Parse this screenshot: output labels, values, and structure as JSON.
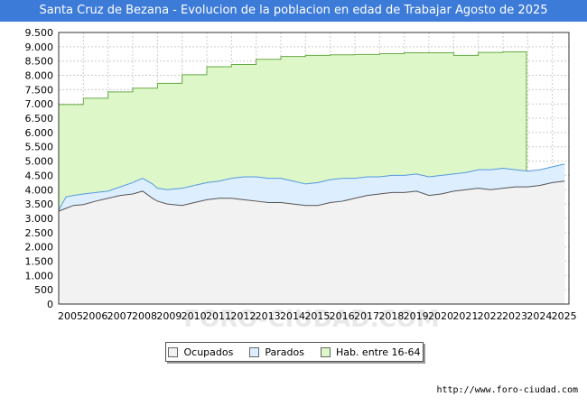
{
  "header": {
    "title": "Santa Cruz de Bezana - Evolucion de la poblacion en edad de Trabajar Agosto de 2025"
  },
  "footer": {
    "source": "http://www.foro-ciudad.com"
  },
  "watermark": "FORO-CIUDAD.COM",
  "colors": {
    "ocupados_fill": "#f2f2f2",
    "ocupados_line": "#555555",
    "parados_fill": "#ddeeff",
    "parados_line": "#5599dd",
    "hab_fill": "#ddf7c8",
    "hab_line": "#66aa44",
    "grid": "#cccccc",
    "title_bg": "#3d7bd9"
  },
  "legend": [
    {
      "key": "ocupados",
      "label": "Ocupados",
      "color": "#f2f2f2"
    },
    {
      "key": "parados",
      "label": "Parados",
      "color": "#ddeeff"
    },
    {
      "key": "hab",
      "label": "Hab. entre 16-64",
      "color": "#ddf7c8"
    }
  ],
  "chart_data": {
    "type": "area",
    "title": "Santa Cruz de Bezana - Evolucion de la poblacion en edad de Trabajar Agosto de 2025",
    "xlabel": "",
    "ylabel": "",
    "xlim": [
      2005,
      2025.67
    ],
    "ylim": [
      0,
      9500
    ],
    "y_ticks": [
      0,
      500,
      1000,
      1500,
      2000,
      2500,
      3000,
      3500,
      4000,
      4500,
      5000,
      5500,
      6000,
      6500,
      7000,
      7500,
      8000,
      8500,
      9000,
      9500
    ],
    "y_tick_labels": [
      "0",
      "500",
      "1.000",
      "1.500",
      "2.000",
      "2.500",
      "3.000",
      "3.500",
      "4.000",
      "4.500",
      "5.000",
      "5.500",
      "6.000",
      "6.500",
      "7.000",
      "7.500",
      "8.000",
      "8.500",
      "9.000",
      "9.500"
    ],
    "x_ticks": [
      "2005",
      "2006",
      "2007",
      "2008",
      "2009",
      "2010",
      "2011",
      "2012",
      "2013",
      "2014",
      "2015",
      "2016",
      "2017",
      "2018",
      "2019",
      "2020",
      "2021",
      "2022",
      "2023",
      "2024",
      "2025"
    ],
    "grid": true,
    "legend_position": "bottom-center",
    "series": [
      {
        "name": "Hab. entre 16-64",
        "type": "step",
        "x": [
          2005.0,
          2006.0,
          2007.0,
          2008.0,
          2009.0,
          2010.0,
          2011.0,
          2012.0,
          2013.0,
          2014.0,
          2015.0,
          2016.0,
          2017.0,
          2018.0,
          2019.0,
          2020.0,
          2021.0,
          2022.0,
          2023.0,
          2023.95
        ],
        "values": [
          6980,
          7200,
          7420,
          7550,
          7720,
          8020,
          8300,
          8380,
          8560,
          8660,
          8700,
          8720,
          8730,
          8760,
          8790,
          8790,
          8700,
          8800,
          8820,
          8820
        ]
      },
      {
        "name": "Parados",
        "x": [
          2005.0,
          2005.3,
          2005.6,
          2006.0,
          2006.5,
          2007.0,
          2007.5,
          2008.0,
          2008.4,
          2008.8,
          2009.0,
          2009.4,
          2010.0,
          2010.5,
          2011.0,
          2011.5,
          2012.0,
          2012.5,
          2013.0,
          2013.5,
          2014.0,
          2014.5,
          2015.0,
          2015.5,
          2016.0,
          2016.5,
          2017.0,
          2017.5,
          2018.0,
          2018.5,
          2019.0,
          2019.5,
          2020.0,
          2020.5,
          2021.0,
          2021.5,
          2022.0,
          2022.5,
          2023.0,
          2023.5,
          2024.0,
          2024.5,
          2025.0,
          2025.5
        ],
        "values": [
          3300,
          3750,
          3800,
          3850,
          3900,
          3950,
          4100,
          4250,
          4400,
          4200,
          4050,
          4000,
          4050,
          4150,
          4250,
          4300,
          4400,
          4450,
          4450,
          4400,
          4400,
          4300,
          4200,
          4250,
          4350,
          4400,
          4400,
          4450,
          4450,
          4500,
          4500,
          4550,
          4450,
          4500,
          4550,
          4600,
          4700,
          4700,
          4750,
          4700,
          4650,
          4700,
          4800,
          4900
        ]
      },
      {
        "name": "Ocupados",
        "x": [
          2005.0,
          2005.3,
          2005.6,
          2006.0,
          2006.5,
          2007.0,
          2007.5,
          2008.0,
          2008.4,
          2008.8,
          2009.0,
          2009.4,
          2010.0,
          2010.5,
          2011.0,
          2011.5,
          2012.0,
          2012.5,
          2013.0,
          2013.5,
          2014.0,
          2014.5,
          2015.0,
          2015.5,
          2016.0,
          2016.5,
          2017.0,
          2017.5,
          2018.0,
          2018.5,
          2019.0,
          2019.5,
          2020.0,
          2020.5,
          2021.0,
          2021.5,
          2022.0,
          2022.5,
          2023.0,
          2023.5,
          2024.0,
          2024.5,
          2025.0,
          2025.5
        ],
        "values": [
          3250,
          3350,
          3450,
          3480,
          3600,
          3700,
          3800,
          3850,
          3950,
          3700,
          3600,
          3500,
          3450,
          3550,
          3650,
          3700,
          3700,
          3650,
          3600,
          3550,
          3550,
          3500,
          3450,
          3450,
          3550,
          3600,
          3700,
          3800,
          3850,
          3900,
          3900,
          3950,
          3800,
          3850,
          3950,
          4000,
          4050,
          4000,
          4050,
          4100,
          4100,
          4150,
          4250,
          4300
        ]
      }
    ]
  }
}
